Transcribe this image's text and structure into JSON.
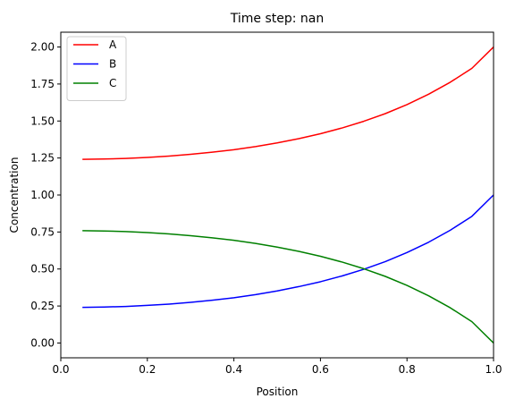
{
  "chart_data": {
    "type": "line",
    "title": "Time step: nan",
    "xlabel": "Position",
    "ylabel": "Concentration",
    "xlim": [
      0.0,
      1.0
    ],
    "ylim": [
      -0.1,
      2.1
    ],
    "x_ticks": [
      0.0,
      0.2,
      0.4,
      0.6,
      0.8,
      1.0
    ],
    "x_tick_labels": [
      "0.0",
      "0.2",
      "0.4",
      "0.6",
      "0.8",
      "1.0"
    ],
    "y_ticks": [
      0.0,
      0.25,
      0.5,
      0.75,
      1.0,
      1.25,
      1.5,
      1.75,
      2.0
    ],
    "y_tick_labels": [
      "0.00",
      "0.25",
      "0.50",
      "0.75",
      "1.00",
      "1.25",
      "1.50",
      "1.75",
      "2.00"
    ],
    "legend_position": "top-left",
    "grid": false,
    "x": [
      0.05,
      0.1,
      0.15,
      0.2,
      0.25,
      0.3,
      0.35,
      0.4,
      0.45,
      0.5,
      0.55,
      0.6,
      0.65,
      0.7,
      0.75,
      0.8,
      0.85,
      0.9,
      0.95,
      1.0
    ],
    "series": [
      {
        "name": "A",
        "color": "#ff0000",
        "values": [
          1.241,
          1.243,
          1.247,
          1.254,
          1.263,
          1.275,
          1.289,
          1.306,
          1.327,
          1.352,
          1.381,
          1.414,
          1.453,
          1.498,
          1.55,
          1.611,
          1.681,
          1.762,
          1.856,
          2.0
        ]
      },
      {
        "name": "B",
        "color": "#0000ff",
        "values": [
          0.241,
          0.243,
          0.247,
          0.254,
          0.263,
          0.275,
          0.289,
          0.306,
          0.327,
          0.352,
          0.381,
          0.414,
          0.453,
          0.498,
          0.55,
          0.611,
          0.681,
          0.762,
          0.856,
          1.0
        ]
      },
      {
        "name": "C",
        "color": "#008000",
        "values": [
          0.759,
          0.757,
          0.753,
          0.746,
          0.737,
          0.725,
          0.711,
          0.694,
          0.673,
          0.648,
          0.619,
          0.586,
          0.547,
          0.502,
          0.45,
          0.389,
          0.319,
          0.238,
          0.144,
          0.0
        ]
      }
    ]
  }
}
